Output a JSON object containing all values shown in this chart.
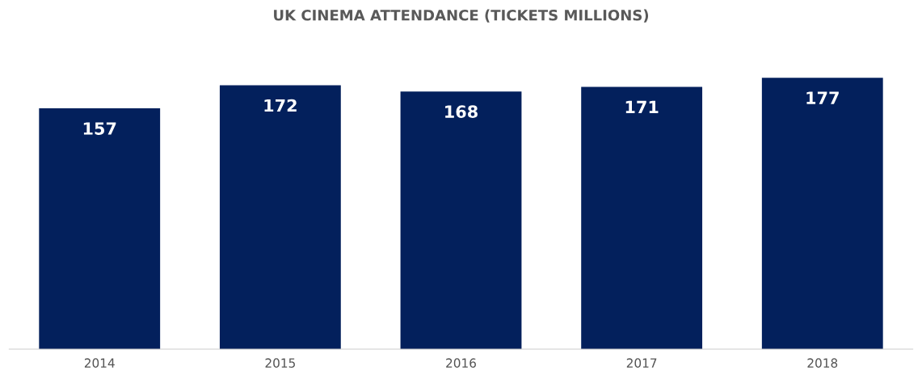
{
  "chart_data": {
    "type": "bar",
    "title": "UK CINEMA ATTENDANCE (TICKETS MILLIONS)",
    "categories": [
      "2014",
      "2015",
      "2016",
      "2017",
      "2018"
    ],
    "values": [
      157,
      172,
      168,
      171,
      177
    ],
    "color": "#03205c",
    "data_labels": true,
    "grid": false,
    "legend": false,
    "tick_labels": "x"
  }
}
